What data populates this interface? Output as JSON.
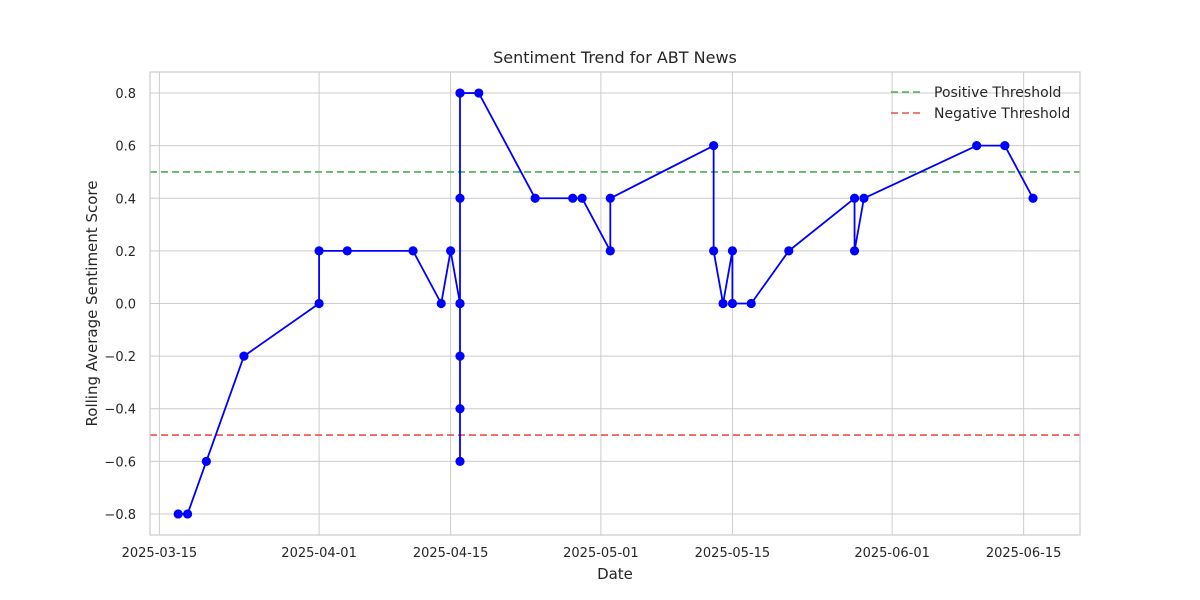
{
  "chart_data": {
    "type": "line",
    "title": "Sentiment Trend for ABT News",
    "xlabel": "Date",
    "ylabel": "Rolling Average Sentiment Score",
    "xlim": [
      "2025-03-14",
      "2025-06-21"
    ],
    "ylim": [
      -0.88,
      0.88
    ],
    "x_ticks": [
      "2025-03-15",
      "2025-04-01",
      "2025-04-15",
      "2025-05-01",
      "2025-05-15",
      "2025-06-01",
      "2025-06-15"
    ],
    "y_ticks": [
      -0.8,
      -0.6,
      -0.4,
      -0.2,
      0.0,
      0.2,
      0.4,
      0.6,
      0.8
    ],
    "y_tick_labels": [
      "−0.8",
      "−0.6",
      "−0.4",
      "−0.2",
      "0.0",
      "0.2",
      "0.4",
      "0.6",
      "0.8"
    ],
    "grid": true,
    "legend_position": "top-right",
    "series": [
      {
        "color": "#0000ff",
        "marker": "circle",
        "x": [
          "2025-03-17",
          "2025-03-18",
          "2025-03-20",
          "2025-03-24",
          "2025-04-01",
          "2025-04-01",
          "2025-04-04",
          "2025-04-11",
          "2025-04-14",
          "2025-04-15",
          "2025-04-16",
          "2025-04-16",
          "2025-04-16",
          "2025-04-16",
          "2025-04-16",
          "2025-04-16",
          "2025-04-16",
          "2025-04-16",
          "2025-04-18",
          "2025-04-24",
          "2025-04-28",
          "2025-04-29",
          "2025-05-02",
          "2025-05-02",
          "2025-05-13",
          "2025-05-13",
          "2025-05-14",
          "2025-05-15",
          "2025-05-15",
          "2025-05-17",
          "2025-05-21",
          "2025-05-28",
          "2025-05-28",
          "2025-05-29",
          "2025-06-10",
          "2025-06-13",
          "2025-06-16"
        ],
        "y": [
          -0.8,
          -0.8,
          -0.6,
          -0.2,
          0.0,
          0.2,
          0.2,
          0.2,
          0.0,
          0.2,
          0.0,
          -0.2,
          -0.4,
          -0.6,
          0.0,
          0.4,
          0.8,
          0.8,
          0.8,
          0.4,
          0.4,
          0.4,
          0.2,
          0.4,
          0.6,
          0.2,
          0.0,
          0.2,
          0.0,
          0.0,
          0.2,
          0.4,
          0.2,
          0.4,
          0.6,
          0.6,
          0.4
        ]
      }
    ],
    "thresholds": [
      {
        "name": "Positive Threshold",
        "value": 0.5,
        "color": "#4caf50"
      },
      {
        "name": "Negative Threshold",
        "value": -0.5,
        "color": "#e8504a"
      }
    ]
  }
}
